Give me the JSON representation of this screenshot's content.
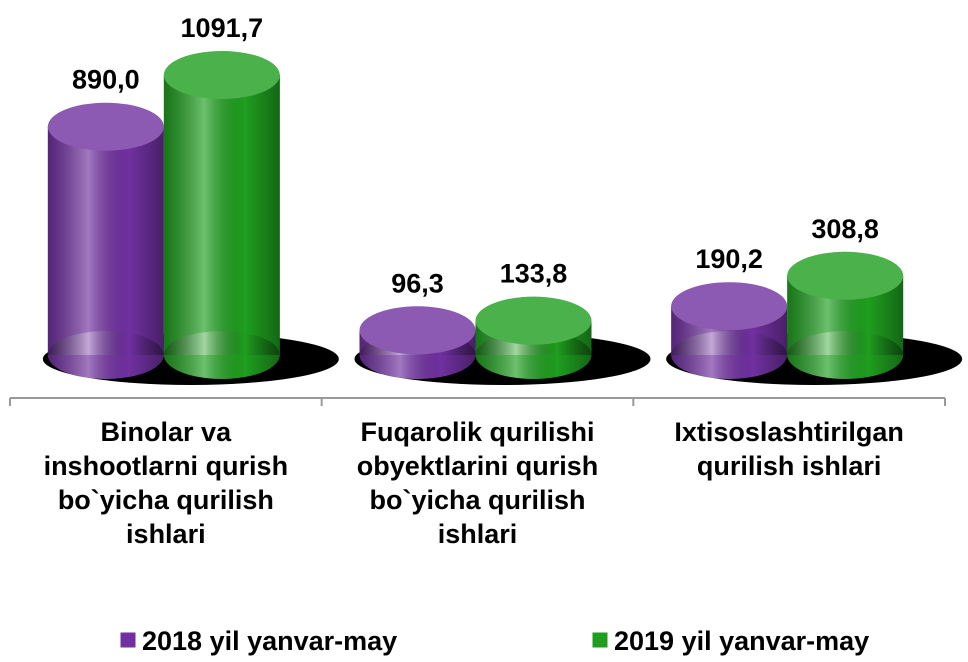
{
  "chart_data": {
    "type": "bar",
    "categories": [
      "Binolar va inshootlarni qurish bo`yicha qurilish ishlari",
      "Fuqarolik qurilishi obyektlarini qurish bo`yicha qurilish ishlari",
      "Ixtisoslashtirilgan qurilish ishlari"
    ],
    "series": [
      {
        "name": "2018 yil yanvar-may",
        "color": "#7030a0",
        "values": [
          890.0,
          96.3,
          190.2
        ],
        "value_labels": [
          "890,0",
          "96,3",
          "190,2"
        ]
      },
      {
        "name": "2019 yil yanvar-may",
        "color": "#1f9e1f",
        "values": [
          1091.7,
          133.8,
          308.8
        ],
        "value_labels": [
          "1091,7",
          "133,8",
          "308,8"
        ]
      }
    ]
  }
}
